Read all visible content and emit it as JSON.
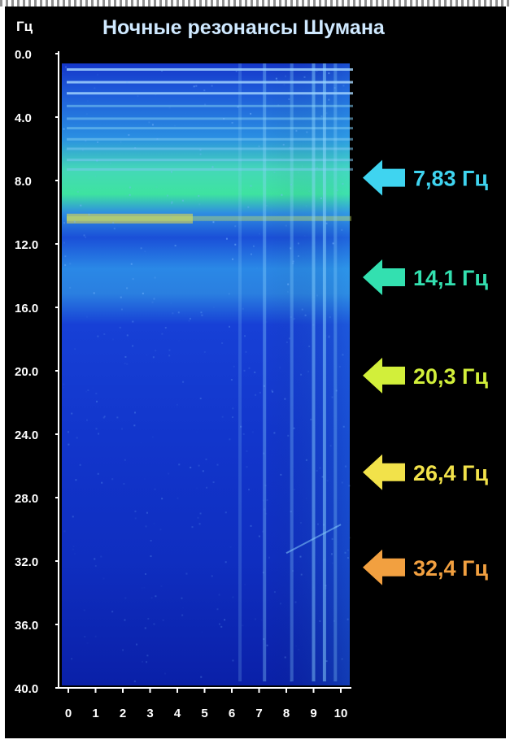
{
  "chart_data": {
    "type": "heatmap",
    "title": "Ночные резонансы Шумана",
    "ylabel": "Гц",
    "xlabel": "",
    "ylim": [
      0,
      40
    ],
    "xlim": [
      0,
      10.5
    ],
    "y_ticks": [
      "0.0",
      "4.0",
      "8.0",
      "12.0",
      "16.0",
      "20.0",
      "24.0",
      "28.0",
      "32.0",
      "36.0",
      "40.0"
    ],
    "x_ticks": [
      "0",
      "1",
      "2",
      "3",
      "4",
      "5",
      "6",
      "7",
      "8",
      "9",
      "10"
    ],
    "resonances": [
      {
        "freq": 7.83,
        "label": "7,83 Гц",
        "color": "#3fd4f0"
      },
      {
        "freq": 14.1,
        "label": "14,1 Гц",
        "color": "#33e0b0"
      },
      {
        "freq": 20.3,
        "label": "20,3 Гц",
        "color": "#d2ef3a"
      },
      {
        "freq": 26.4,
        "label": "26,4 Гц",
        "color": "#f2e24a"
      },
      {
        "freq": 32.4,
        "label": "32,4 Гц",
        "color": "#f2a040"
      }
    ],
    "colors": {
      "background": "#000000",
      "low": "#0a1fa8",
      "mid": "#1e66e6",
      "high": "#3fe0a0",
      "peak": "#f0e040"
    }
  }
}
